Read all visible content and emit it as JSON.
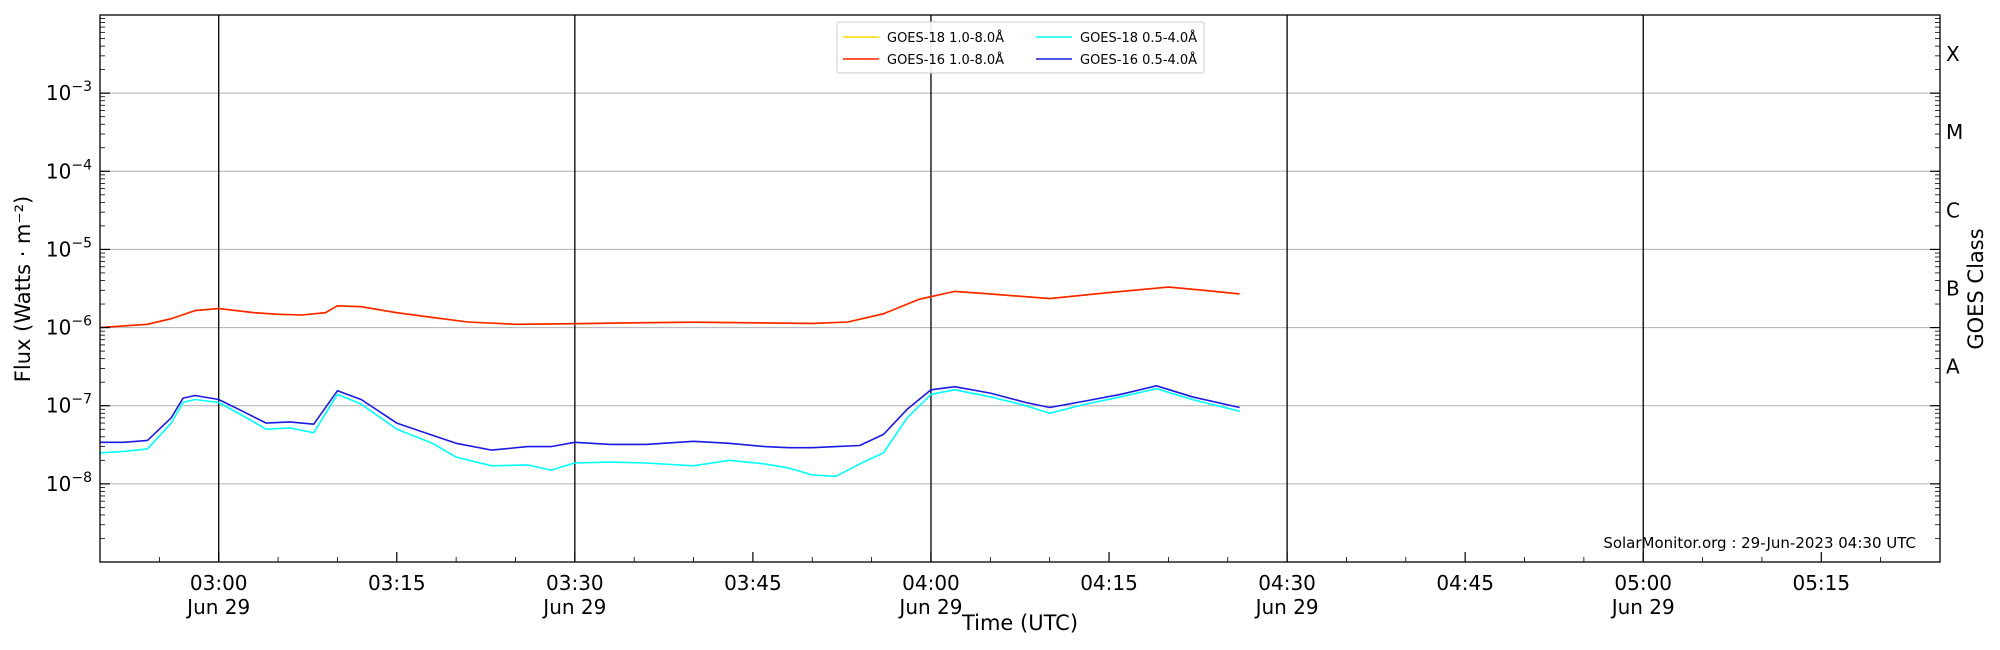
{
  "chart_data": {
    "type": "line",
    "xlabel": "Time (UTC)",
    "ylabel": "Flux (Watts · m⁻²)",
    "y2label": "GOES Class",
    "yscale": "log",
    "ylim": [
      1e-09,
      0.01
    ],
    "xlim": [
      "02:50",
      "05:25"
    ],
    "grid": "horizontal",
    "legend_position": "top-center",
    "credit": "SolarMonitor.org : 29-Jun-2023 04:30 UTC",
    "date_label": "Jun 29",
    "x_ticks": [
      "03:00",
      "03:15",
      "03:30",
      "03:45",
      "04:00",
      "04:15",
      "04:30",
      "04:45",
      "05:00",
      "05:15"
    ],
    "x_day_ticks": [
      "03:00",
      "03:30",
      "04:00",
      "04:30",
      "05:00"
    ],
    "y_ticks": [
      {
        "value": 0.001,
        "base": "10",
        "exp": "−3"
      },
      {
        "value": 0.0001,
        "base": "10",
        "exp": "−4"
      },
      {
        "value": 1e-05,
        "base": "10",
        "exp": "−5"
      },
      {
        "value": 1e-06,
        "base": "10",
        "exp": "−6"
      },
      {
        "value": 1e-07,
        "base": "10",
        "exp": "−7"
      },
      {
        "value": 1e-08,
        "base": "10",
        "exp": "−8"
      }
    ],
    "goes_classes": [
      {
        "label": "X",
        "value": 0.001
      },
      {
        "label": "M",
        "value": 0.0001
      },
      {
        "label": "C",
        "value": 1e-05
      },
      {
        "label": "B",
        "value": 1e-06
      },
      {
        "label": "A",
        "value": 1e-07
      }
    ],
    "series": [
      {
        "name": "GOES-18 1.0-8.0Å",
        "color": "#ffd700",
        "x": [
          "02:50",
          "02:52",
          "02:54",
          "02:56",
          "02:58",
          "03:00",
          "03:03",
          "03:05",
          "03:07",
          "03:09",
          "03:10",
          "03:12",
          "03:15",
          "03:18",
          "03:21",
          "03:25",
          "03:30",
          "03:35",
          "03:40",
          "03:45",
          "03:50",
          "03:53",
          "03:56",
          "03:59",
          "04:02",
          "04:05",
          "04:10",
          "04:15",
          "04:20",
          "04:23",
          "04:26"
        ],
        "y": [
          1e-06,
          1.05e-06,
          1.1e-06,
          1.3e-06,
          1.65e-06,
          1.75e-06,
          1.55e-06,
          1.48e-06,
          1.45e-06,
          1.55e-06,
          1.9e-06,
          1.85e-06,
          1.55e-06,
          1.35e-06,
          1.18e-06,
          1.1e-06,
          1.12e-06,
          1.15e-06,
          1.17e-06,
          1.15e-06,
          1.13e-06,
          1.18e-06,
          1.5e-06,
          2.3e-06,
          2.9e-06,
          2.7e-06,
          2.35e-06,
          2.8e-06,
          3.3e-06,
          3e-06,
          2.7e-06
        ]
      },
      {
        "name": "GOES-16 1.0-8.0Å",
        "color": "#ff2200",
        "x": [
          "02:50",
          "02:52",
          "02:54",
          "02:56",
          "02:58",
          "03:00",
          "03:03",
          "03:05",
          "03:07",
          "03:09",
          "03:10",
          "03:12",
          "03:15",
          "03:18",
          "03:21",
          "03:25",
          "03:30",
          "03:35",
          "03:40",
          "03:45",
          "03:50",
          "03:53",
          "03:56",
          "03:59",
          "04:02",
          "04:05",
          "04:10",
          "04:15",
          "04:20",
          "04:23",
          "04:26"
        ],
        "y": [
          1e-06,
          1.05e-06,
          1.1e-06,
          1.3e-06,
          1.65e-06,
          1.75e-06,
          1.55e-06,
          1.48e-06,
          1.45e-06,
          1.55e-06,
          1.9e-06,
          1.85e-06,
          1.55e-06,
          1.35e-06,
          1.18e-06,
          1.1e-06,
          1.12e-06,
          1.15e-06,
          1.17e-06,
          1.15e-06,
          1.13e-06,
          1.18e-06,
          1.5e-06,
          2.3e-06,
          2.9e-06,
          2.7e-06,
          2.35e-06,
          2.8e-06,
          3.3e-06,
          3e-06,
          2.7e-06
        ]
      },
      {
        "name": "GOES-18 0.5-4.0Å",
        "color": "#00ffff",
        "x": [
          "02:50",
          "02:52",
          "02:54",
          "02:56",
          "02:57",
          "02:58",
          "03:00",
          "03:02",
          "03:04",
          "03:06",
          "03:08",
          "03:10",
          "03:12",
          "03:15",
          "03:18",
          "03:20",
          "03:23",
          "03:26",
          "03:28",
          "03:30",
          "03:33",
          "03:36",
          "03:40",
          "03:43",
          "03:46",
          "03:48",
          "03:50",
          "03:52",
          "03:54",
          "03:56",
          "03:58",
          "04:00",
          "04:02",
          "04:05",
          "04:08",
          "04:10",
          "04:13",
          "04:16",
          "04:19",
          "04:22",
          "04:26"
        ],
        "y": [
          2.5e-08,
          2.6e-08,
          2.8e-08,
          6e-08,
          1.1e-07,
          1.2e-07,
          1.1e-07,
          7.5e-08,
          5e-08,
          5.2e-08,
          4.5e-08,
          1.4e-07,
          1.05e-07,
          5e-08,
          3.3e-08,
          2.2e-08,
          1.7e-08,
          1.75e-08,
          1.5e-08,
          1.85e-08,
          1.9e-08,
          1.85e-08,
          1.7e-08,
          2e-08,
          1.8e-08,
          1.6e-08,
          1.3e-08,
          1.25e-08,
          1.8e-08,
          2.5e-08,
          7e-08,
          1.4e-07,
          1.6e-07,
          1.3e-07,
          1e-07,
          8e-08,
          1.05e-07,
          1.3e-07,
          1.65e-07,
          1.2e-07,
          8.5e-08
        ]
      },
      {
        "name": "GOES-16 0.5-4.0Å",
        "color": "#1a1ae6",
        "x": [
          "02:50",
          "02:52",
          "02:54",
          "02:56",
          "02:57",
          "02:58",
          "03:00",
          "03:02",
          "03:04",
          "03:06",
          "03:08",
          "03:10",
          "03:12",
          "03:15",
          "03:18",
          "03:20",
          "03:23",
          "03:26",
          "03:28",
          "03:30",
          "03:33",
          "03:36",
          "03:40",
          "03:43",
          "03:46",
          "03:48",
          "03:50",
          "03:52",
          "03:54",
          "03:56",
          "03:58",
          "04:00",
          "04:02",
          "04:05",
          "04:08",
          "04:10",
          "04:13",
          "04:16",
          "04:19",
          "04:22",
          "04:26"
        ],
        "y": [
          3.4e-08,
          3.4e-08,
          3.6e-08,
          7e-08,
          1.25e-07,
          1.35e-07,
          1.2e-07,
          8.5e-08,
          6e-08,
          6.2e-08,
          5.8e-08,
          1.55e-07,
          1.2e-07,
          6e-08,
          4.2e-08,
          3.3e-08,
          2.7e-08,
          3e-08,
          3e-08,
          3.4e-08,
          3.2e-08,
          3.2e-08,
          3.5e-08,
          3.3e-08,
          3e-08,
          2.9e-08,
          2.9e-08,
          3e-08,
          3.1e-08,
          4.3e-08,
          9e-08,
          1.6e-07,
          1.75e-07,
          1.45e-07,
          1.1e-07,
          9.5e-08,
          1.15e-07,
          1.4e-07,
          1.8e-07,
          1.3e-07,
          9.5e-08
        ]
      }
    ]
  }
}
